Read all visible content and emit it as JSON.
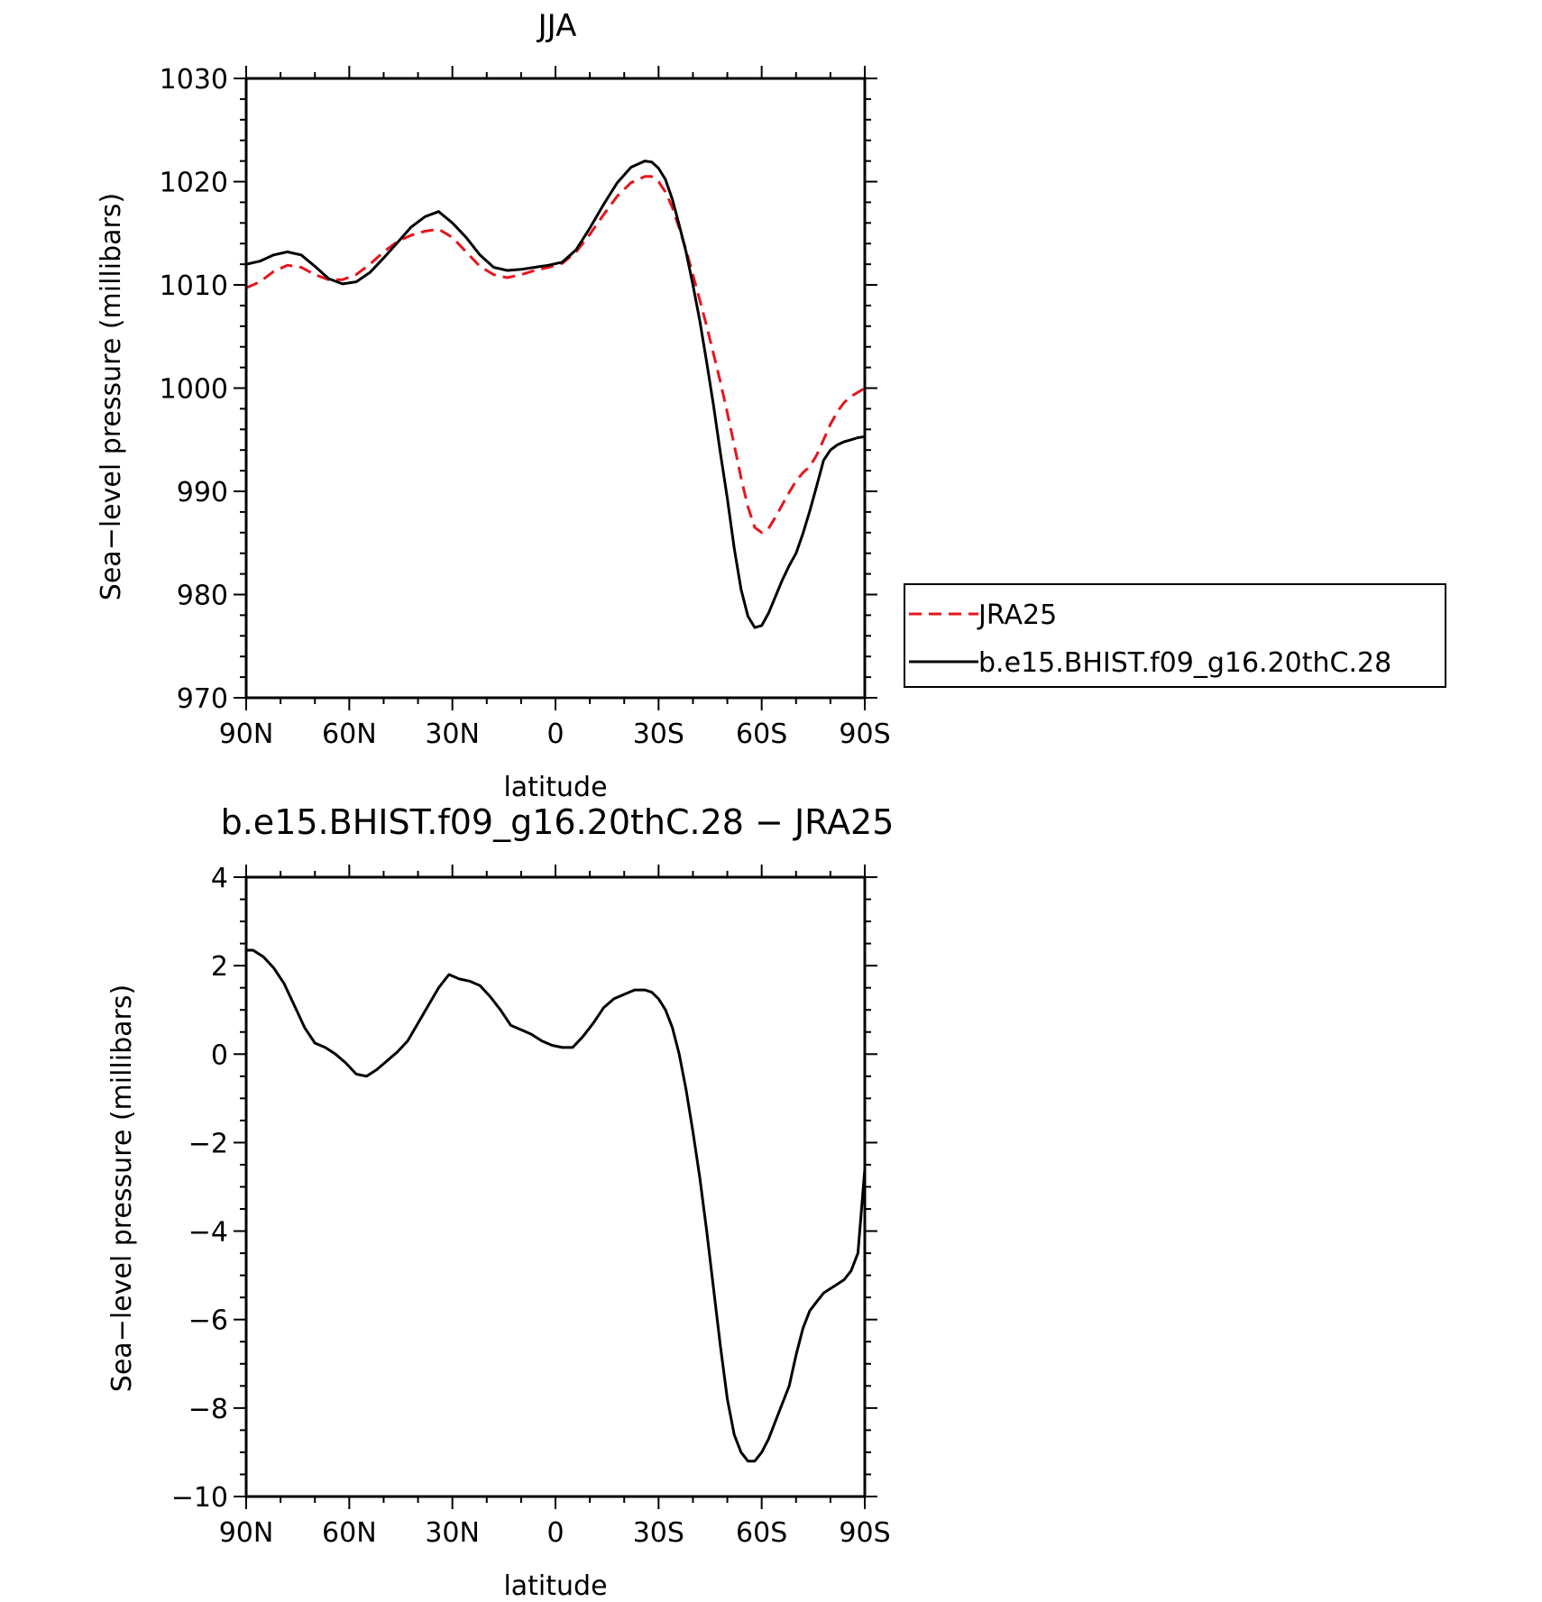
{
  "chart_data": [
    {
      "type": "line",
      "title": "JJA",
      "xlabel": "latitude",
      "ylabel": "Sea−level pressure (millibars)",
      "xlim": [
        -90,
        90
      ],
      "ylim": [
        970,
        1030
      ],
      "xticks": [
        {
          "value": -90,
          "label": "90N"
        },
        {
          "value": -60,
          "label": "60N"
        },
        {
          "value": -30,
          "label": "30N"
        },
        {
          "value": 0,
          "label": "0"
        },
        {
          "value": 30,
          "label": "30S"
        },
        {
          "value": 60,
          "label": "60S"
        },
        {
          "value": 90,
          "label": "90S"
        }
      ],
      "yticks": [
        {
          "value": 970,
          "label": "970"
        },
        {
          "value": 980,
          "label": "980"
        },
        {
          "value": 990,
          "label": "990"
        },
        {
          "value": 1000,
          "label": "1000"
        },
        {
          "value": 1010,
          "label": "1010"
        },
        {
          "value": 1020,
          "label": "1020"
        },
        {
          "value": 1030,
          "label": "1030"
        }
      ],
      "legend": {
        "position": "right",
        "entries": [
          "JRA25",
          "b.e15.BHIST.f09_g16.20thC.28"
        ]
      },
      "series": [
        {
          "name": "JRA25",
          "color": "#e8141c",
          "dash": true,
          "x": [
            -90,
            -86,
            -82,
            -78,
            -74,
            -70,
            -66,
            -62,
            -58,
            -54,
            -50,
            -46,
            -42,
            -38,
            -34,
            -30,
            -26,
            -22,
            -18,
            -14,
            -10,
            -6,
            -2,
            2,
            6,
            10,
            14,
            18,
            22,
            26,
            28,
            30,
            32,
            34,
            36,
            38,
            40,
            42,
            44,
            46,
            48,
            50,
            52,
            54,
            56,
            58,
            60,
            62,
            64,
            66,
            68,
            70,
            72,
            74,
            76,
            78,
            80,
            82,
            84,
            86,
            88,
            90
          ],
          "values": [
            1009.7,
            1010.3,
            1011.3,
            1011.9,
            1011.7,
            1011.0,
            1010.5,
            1010.5,
            1011.0,
            1012.0,
            1013.2,
            1014.2,
            1014.8,
            1015.2,
            1015.4,
            1014.6,
            1013.2,
            1011.8,
            1011.0,
            1010.7,
            1011.0,
            1011.4,
            1011.7,
            1012.1,
            1013.2,
            1014.9,
            1016.8,
            1018.6,
            1019.9,
            1020.5,
            1020.5,
            1020.0,
            1019.0,
            1017.5,
            1015.5,
            1013.4,
            1011.0,
            1008.5,
            1006.0,
            1003.3,
            1000.6,
            997.6,
            994.5,
            991.3,
            988.5,
            986.5,
            986.0,
            986.4,
            987.5,
            988.7,
            989.9,
            991.0,
            991.8,
            992.4,
            993.5,
            995.0,
            996.5,
            997.7,
            998.6,
            999.2,
            999.6,
            1000.0
          ]
        },
        {
          "name": "b.e15.BHIST.f09_g16.20thC.28",
          "color": "#000000",
          "dash": false,
          "x": [
            -90,
            -86,
            -82,
            -78,
            -74,
            -70,
            -66,
            -62,
            -58,
            -54,
            -50,
            -46,
            -42,
            -38,
            -34,
            -30,
            -26,
            -22,
            -18,
            -14,
            -10,
            -6,
            -2,
            2,
            6,
            10,
            14,
            18,
            22,
            26,
            28,
            30,
            32,
            34,
            36,
            38,
            40,
            42,
            44,
            46,
            48,
            50,
            52,
            54,
            56,
            58,
            60,
            62,
            64,
            66,
            68,
            70,
            72,
            74,
            76,
            78,
            80,
            82,
            84,
            86,
            88,
            90
          ],
          "values": [
            1012.0,
            1012.3,
            1012.9,
            1013.2,
            1012.9,
            1011.8,
            1010.6,
            1010.1,
            1010.3,
            1011.2,
            1012.6,
            1014.1,
            1015.6,
            1016.6,
            1017.1,
            1016.0,
            1014.6,
            1012.9,
            1011.7,
            1011.4,
            1011.5,
            1011.7,
            1011.9,
            1012.2,
            1013.4,
            1015.5,
            1017.8,
            1019.9,
            1021.4,
            1022.0,
            1021.9,
            1021.3,
            1020.2,
            1018.3,
            1015.8,
            1013.2,
            1010.0,
            1006.5,
            1002.5,
            998.3,
            993.7,
            989.3,
            984.5,
            980.5,
            977.9,
            976.8,
            977.0,
            978.2,
            979.8,
            981.4,
            982.8,
            984.0,
            985.9,
            988.1,
            990.5,
            993.0,
            994.0,
            994.5,
            994.8,
            995.0,
            995.2,
            995.3
          ]
        }
      ]
    },
    {
      "type": "line",
      "title": "b.e15.BHIST.f09_g16.20thC.28 − JRA25",
      "xlabel": "latitude",
      "ylabel": "Sea−level pressure (millibars)",
      "xlim": [
        -90,
        90
      ],
      "ylim": [
        -10,
        4
      ],
      "xticks": [
        {
          "value": -90,
          "label": "90N"
        },
        {
          "value": -60,
          "label": "60N"
        },
        {
          "value": -30,
          "label": "30N"
        },
        {
          "value": 0,
          "label": "0"
        },
        {
          "value": 30,
          "label": "30S"
        },
        {
          "value": 60,
          "label": "60S"
        },
        {
          "value": 90,
          "label": "90S"
        }
      ],
      "yticks": [
        {
          "value": -10,
          "label": "−10"
        },
        {
          "value": -8,
          "label": "−8"
        },
        {
          "value": -6,
          "label": "−6"
        },
        {
          "value": -4,
          "label": "−4"
        },
        {
          "value": -2,
          "label": "−2"
        },
        {
          "value": 0,
          "label": "0"
        },
        {
          "value": 2,
          "label": "2"
        },
        {
          "value": 4,
          "label": "4"
        }
      ],
      "series": [
        {
          "color": "#000000",
          "dash": false,
          "x": [
            -90,
            -88,
            -85,
            -82,
            -79,
            -76,
            -73,
            -70,
            -67,
            -64,
            -61,
            -58,
            -55,
            -52,
            -49,
            -46,
            -43,
            -40,
            -37,
            -34,
            -31,
            -28,
            -25,
            -22,
            -19,
            -16,
            -13,
            -10,
            -7,
            -4,
            -1,
            2,
            5,
            8,
            11,
            14,
            17,
            20,
            23,
            26,
            28,
            30,
            32,
            34,
            36,
            38,
            40,
            42,
            44,
            46,
            48,
            50,
            52,
            54,
            56,
            58,
            60,
            62,
            64,
            66,
            68,
            70,
            72,
            74,
            76,
            78,
            80,
            82,
            84,
            86,
            88,
            90
          ],
          "values": [
            2.35,
            2.35,
            2.2,
            1.95,
            1.6,
            1.1,
            0.6,
            0.25,
            0.15,
            0.0,
            -0.2,
            -0.45,
            -0.5,
            -0.35,
            -0.15,
            0.05,
            0.3,
            0.7,
            1.1,
            1.5,
            1.8,
            1.7,
            1.65,
            1.55,
            1.3,
            1.0,
            0.65,
            0.55,
            0.45,
            0.3,
            0.2,
            0.15,
            0.15,
            0.4,
            0.7,
            1.05,
            1.25,
            1.35,
            1.45,
            1.45,
            1.4,
            1.25,
            1.0,
            0.6,
            0.0,
            -0.8,
            -1.75,
            -2.8,
            -4.0,
            -5.3,
            -6.6,
            -7.8,
            -8.6,
            -9.0,
            -9.2,
            -9.2,
            -9.0,
            -8.7,
            -8.3,
            -7.9,
            -7.5,
            -6.8,
            -6.2,
            -5.8,
            -5.6,
            -5.4,
            -5.3,
            -5.2,
            -5.1,
            -4.9,
            -4.5,
            -2.6
          ]
        }
      ]
    }
  ]
}
